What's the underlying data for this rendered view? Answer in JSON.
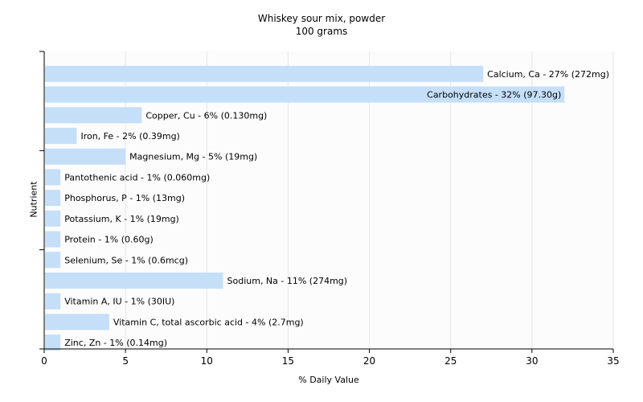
{
  "chart_data": {
    "type": "bar",
    "orientation": "horizontal",
    "title": "Whiskey sour mix, powder",
    "subtitle": "100 grams",
    "xlabel": "% Daily Value",
    "ylabel": "Nutrient",
    "xlim": [
      0,
      35
    ],
    "xticks": [
      0,
      5,
      10,
      15,
      20,
      25,
      30,
      35
    ],
    "grid": "vertical",
    "bar_color": "#c5dff9",
    "categories": [
      "Calcium, Ca",
      "Carbohydrates",
      "Copper, Cu",
      "Iron, Fe",
      "Magnesium, Mg",
      "Pantothenic acid",
      "Phosphorus, P",
      "Potassium, K",
      "Protein",
      "Selenium, Se",
      "Sodium, Na",
      "Vitamin A, IU",
      "Vitamin C, total ascorbic acid",
      "Zinc, Zn"
    ],
    "values": [
      27,
      32,
      6,
      2,
      5,
      1,
      1,
      1,
      1,
      1,
      11,
      1,
      4,
      1
    ],
    "labels": [
      "Calcium, Ca - 27% (272mg)",
      "Carbohydrates - 32% (97.30g)",
      "Copper, Cu - 6% (0.130mg)",
      "Iron, Fe - 2% (0.39mg)",
      "Magnesium, Mg - 5% (19mg)",
      "Pantothenic acid - 1% (0.060mg)",
      "Phosphorus, P - 1% (13mg)",
      "Potassium, K - 1% (19mg)",
      "Protein - 1% (0.60g)",
      "Selenium, Se - 1% (0.6mcg)",
      "Sodium, Na - 11% (274mg)",
      "Vitamin A, IU - 1% (30IU)",
      "Vitamin C, total ascorbic acid - 4% (2.7mg)",
      "Zinc, Zn - 1% (0.14mg)"
    ]
  }
}
